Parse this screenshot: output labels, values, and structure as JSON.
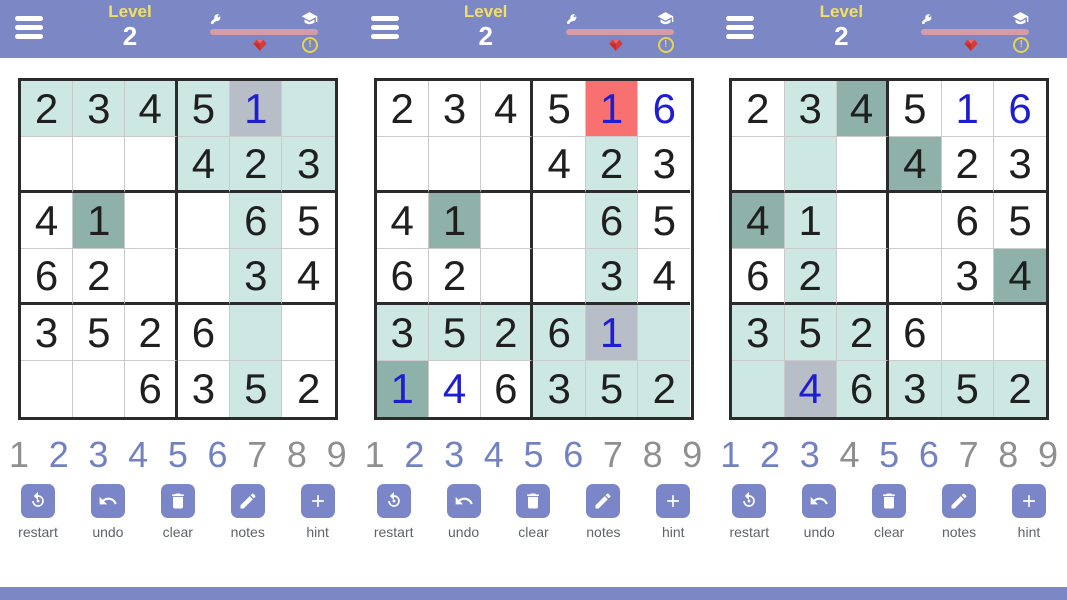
{
  "colors": {
    "header-bg": "#7c87c5",
    "level-yellow": "#f2e063",
    "progress-pink": "#d59ca8",
    "gem-red": "#d63c3c",
    "alert-yellow": "#e6d44f",
    "cell-hl": "#cde8e3",
    "cell-same": "#8eb2aa",
    "cell-sel": "#b8bec7",
    "cell-err": "#f97070",
    "ink-given": "#1f1f1f",
    "ink-user": "#1f1dd1",
    "num-on": "#7282c1",
    "num-off": "#8f8f8f",
    "btn-bg": "#7a86c7",
    "label-gray": "#5f6368",
    "line-thin": "#cbcbcb",
    "line-thick": "#2b2b2b"
  },
  "header": {
    "level_label": "Level",
    "level_value": "2"
  },
  "toolbar": {
    "buttons": [
      {
        "name": "restart",
        "label": "restart"
      },
      {
        "name": "undo",
        "label": "undo"
      },
      {
        "name": "clear",
        "label": "clear"
      },
      {
        "name": "notes",
        "label": "notes"
      },
      {
        "name": "hint",
        "label": "hint"
      }
    ]
  },
  "panels": [
    {
      "grid": [
        [
          [
            "2",
            "hl",
            "g"
          ],
          [
            "3",
            "hl",
            "g"
          ],
          [
            "4",
            "hl",
            "g"
          ],
          [
            "5",
            "hl",
            "g"
          ],
          [
            "1",
            "sel",
            "u"
          ],
          [
            "",
            "hl",
            "g"
          ]
        ],
        [
          [
            "",
            "w",
            "g"
          ],
          [
            "",
            "w",
            "g"
          ],
          [
            "",
            "w",
            "g"
          ],
          [
            "4",
            "hl",
            "g"
          ],
          [
            "2",
            "hl",
            "g"
          ],
          [
            "3",
            "hl",
            "g"
          ]
        ],
        [
          [
            "4",
            "w",
            "g"
          ],
          [
            "1",
            "same",
            "g"
          ],
          [
            "",
            "w",
            "g"
          ],
          [
            "",
            "w",
            "g"
          ],
          [
            "6",
            "hl",
            "g"
          ],
          [
            "5",
            "w",
            "g"
          ]
        ],
        [
          [
            "6",
            "w",
            "g"
          ],
          [
            "2",
            "w",
            "g"
          ],
          [
            "",
            "w",
            "g"
          ],
          [
            "",
            "w",
            "g"
          ],
          [
            "3",
            "hl",
            "g"
          ],
          [
            "4",
            "w",
            "g"
          ]
        ],
        [
          [
            "3",
            "w",
            "g"
          ],
          [
            "5",
            "w",
            "g"
          ],
          [
            "2",
            "w",
            "g"
          ],
          [
            "6",
            "w",
            "g"
          ],
          [
            "",
            "hl",
            "g"
          ],
          [
            "",
            "w",
            "g"
          ]
        ],
        [
          [
            "",
            "w",
            "g"
          ],
          [
            "",
            "w",
            "g"
          ],
          [
            "6",
            "w",
            "g"
          ],
          [
            "3",
            "w",
            "g"
          ],
          [
            "5",
            "hl",
            "g"
          ],
          [
            "2",
            "w",
            "g"
          ]
        ]
      ],
      "numbers": [
        [
          "1",
          "off"
        ],
        [
          "2",
          "on"
        ],
        [
          "3",
          "on"
        ],
        [
          "4",
          "on"
        ],
        [
          "5",
          "on"
        ],
        [
          "6",
          "on"
        ],
        [
          "7",
          "off"
        ],
        [
          "8",
          "off"
        ],
        [
          "9",
          "off"
        ]
      ]
    },
    {
      "grid": [
        [
          [
            "2",
            "w",
            "g"
          ],
          [
            "3",
            "w",
            "g"
          ],
          [
            "4",
            "w",
            "g"
          ],
          [
            "5",
            "w",
            "g"
          ],
          [
            "1",
            "err",
            "u"
          ],
          [
            "6",
            "w",
            "u"
          ]
        ],
        [
          [
            "",
            "w",
            "g"
          ],
          [
            "",
            "w",
            "g"
          ],
          [
            "",
            "w",
            "g"
          ],
          [
            "4",
            "w",
            "g"
          ],
          [
            "2",
            "hl",
            "g"
          ],
          [
            "3",
            "w",
            "g"
          ]
        ],
        [
          [
            "4",
            "w",
            "g"
          ],
          [
            "1",
            "same",
            "g"
          ],
          [
            "",
            "w",
            "g"
          ],
          [
            "",
            "w",
            "g"
          ],
          [
            "6",
            "hl",
            "g"
          ],
          [
            "5",
            "w",
            "g"
          ]
        ],
        [
          [
            "6",
            "w",
            "g"
          ],
          [
            "2",
            "w",
            "g"
          ],
          [
            "",
            "w",
            "g"
          ],
          [
            "",
            "w",
            "g"
          ],
          [
            "3",
            "hl",
            "g"
          ],
          [
            "4",
            "w",
            "g"
          ]
        ],
        [
          [
            "3",
            "hl",
            "g"
          ],
          [
            "5",
            "hl",
            "g"
          ],
          [
            "2",
            "hl",
            "g"
          ],
          [
            "6",
            "hl",
            "g"
          ],
          [
            "1",
            "sel",
            "u"
          ],
          [
            "",
            "hl",
            "g"
          ]
        ],
        [
          [
            "1",
            "same",
            "u"
          ],
          [
            "4",
            "w",
            "u"
          ],
          [
            "6",
            "w",
            "g"
          ],
          [
            "3",
            "hl",
            "g"
          ],
          [
            "5",
            "hl",
            "g"
          ],
          [
            "2",
            "hl",
            "g"
          ]
        ]
      ],
      "numbers": [
        [
          "1",
          "off"
        ],
        [
          "2",
          "on"
        ],
        [
          "3",
          "on"
        ],
        [
          "4",
          "on"
        ],
        [
          "5",
          "on"
        ],
        [
          "6",
          "on"
        ],
        [
          "7",
          "off"
        ],
        [
          "8",
          "off"
        ],
        [
          "9",
          "off"
        ]
      ]
    },
    {
      "grid": [
        [
          [
            "2",
            "w",
            "g"
          ],
          [
            "3",
            "hl",
            "g"
          ],
          [
            "4",
            "same",
            "g"
          ],
          [
            "5",
            "w",
            "g"
          ],
          [
            "1",
            "w",
            "u"
          ],
          [
            "6",
            "w",
            "u"
          ]
        ],
        [
          [
            "",
            "w",
            "g"
          ],
          [
            "",
            "hl",
            "g"
          ],
          [
            "",
            "w",
            "g"
          ],
          [
            "4",
            "same",
            "g"
          ],
          [
            "2",
            "w",
            "g"
          ],
          [
            "3",
            "w",
            "g"
          ]
        ],
        [
          [
            "4",
            "same",
            "g"
          ],
          [
            "1",
            "hl",
            "g"
          ],
          [
            "",
            "w",
            "g"
          ],
          [
            "",
            "w",
            "g"
          ],
          [
            "6",
            "w",
            "g"
          ],
          [
            "5",
            "w",
            "g"
          ]
        ],
        [
          [
            "6",
            "w",
            "g"
          ],
          [
            "2",
            "hl",
            "g"
          ],
          [
            "",
            "w",
            "g"
          ],
          [
            "",
            "w",
            "g"
          ],
          [
            "3",
            "w",
            "g"
          ],
          [
            "4",
            "same",
            "g"
          ]
        ],
        [
          [
            "3",
            "hl",
            "g"
          ],
          [
            "5",
            "hl",
            "g"
          ],
          [
            "2",
            "hl",
            "g"
          ],
          [
            "6",
            "w",
            "g"
          ],
          [
            "",
            "w",
            "g"
          ],
          [
            "",
            "w",
            "g"
          ]
        ],
        [
          [
            "",
            "hl",
            "g"
          ],
          [
            "4",
            "sel",
            "u"
          ],
          [
            "6",
            "hl",
            "g"
          ],
          [
            "3",
            "hl",
            "g"
          ],
          [
            "5",
            "hl",
            "g"
          ],
          [
            "2",
            "hl",
            "g"
          ]
        ]
      ],
      "numbers": [
        [
          "1",
          "on"
        ],
        [
          "2",
          "on"
        ],
        [
          "3",
          "on"
        ],
        [
          "4",
          "off"
        ],
        [
          "5",
          "on"
        ],
        [
          "6",
          "on"
        ],
        [
          "7",
          "off"
        ],
        [
          "8",
          "off"
        ],
        [
          "9",
          "off"
        ]
      ]
    }
  ]
}
